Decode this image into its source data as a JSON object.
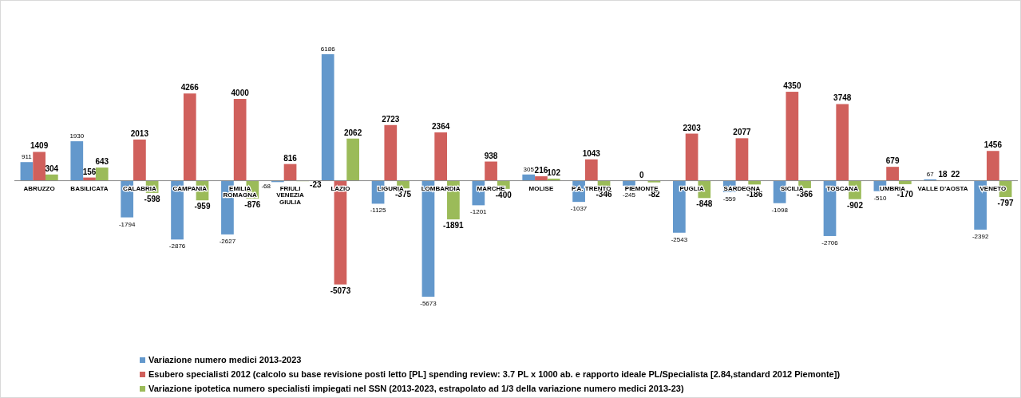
{
  "chart_data": {
    "type": "bar",
    "categories": [
      "ABRUZZO",
      "BASILICATA",
      "CALABRIA",
      "CAMPANIA",
      "EMILIA ROMAGNA",
      "FRIULI VENEZIA GIULIA",
      "LAZIO",
      "LIGURIA",
      "LOMBARDIA",
      "MARCHE",
      "MOLISE",
      "P.A. TRENTO",
      "PIEMONTE",
      "PUGLIA",
      "SARDEGNA",
      "SICILIA",
      "TOSCANA",
      "UMBRIA",
      "VALLE D'AOSTA",
      "VENETO"
    ],
    "series": [
      {
        "name": "Variazione numero medici 2013-2023",
        "color": "#6398cc",
        "values": [
          911,
          1930,
          -1794,
          -2876,
          -2627,
          -68,
          6186,
          -1125,
          -5673,
          -1201,
          305,
          -1037,
          -245,
          -2543,
          -559,
          -1098,
          -2706,
          -510,
          67,
          -2392
        ]
      },
      {
        "name": "Esubero specialisti 2012 (calcolo su base revisione posti letto [PL] spending review: 3.7 PL x 1000 ab. e rapporto ideale PL/Specialista [2.84,standard 2012  Piemonte])",
        "color": "#d0605c",
        "values": [
          1409,
          156,
          2013,
          4266,
          4000,
          816,
          -5073,
          2723,
          2364,
          938,
          216,
          1043,
          0,
          2303,
          2077,
          4350,
          3748,
          679,
          18,
          1456
        ]
      },
      {
        "name": "Variazione ipotetica numero specialisti impiegati nel SSN (2013-2023, estrapolato ad 1/3 della variazione numero medici 2013-23)",
        "color": "#9bbb59",
        "values": [
          304,
          643,
          -598,
          -959,
          -876,
          -23,
          2062,
          -375,
          -1891,
          -400,
          102,
          -346,
          -82,
          -848,
          -186,
          -366,
          -902,
          -170,
          22,
          -797
        ]
      }
    ],
    "data_labels": true,
    "legend": "bottom"
  }
}
